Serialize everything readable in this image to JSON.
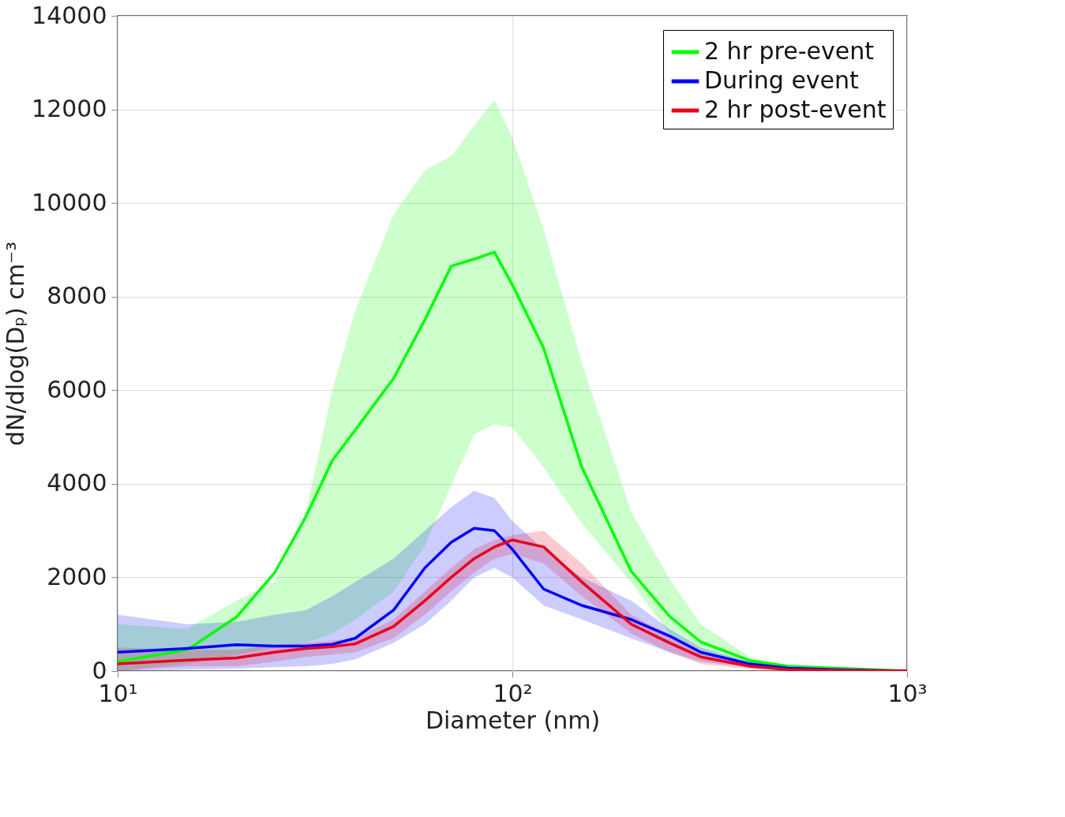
{
  "chart_data": {
    "type": "line",
    "xlabel": "Diameter (nm)",
    "ylabel": "dN/dlog(Dₚ) cm⁻³",
    "log": "x",
    "grid": true,
    "legend": "top right",
    "line_style": "solid",
    "marker": "none",
    "xlim": [
      10,
      1000
    ],
    "xticks": [
      {
        "value": 10,
        "label": "10¹"
      },
      {
        "value": 100,
        "label": "10²"
      },
      {
        "value": 1000,
        "label": "10³"
      }
    ],
    "ylim": [
      0,
      14000
    ],
    "yticks": [
      0,
      2000,
      4000,
      6000,
      8000,
      10000,
      12000,
      14000
    ],
    "x": [
      10,
      15,
      20,
      25,
      30,
      35,
      40,
      50,
      60,
      70,
      80,
      90,
      100,
      120,
      150,
      200,
      250,
      300,
      400,
      500,
      700,
      1000
    ],
    "series": [
      {
        "name": "2 hr pre-event",
        "color": "#00ff00",
        "values": [
          200,
          450,
          1150,
          2100,
          3300,
          4500,
          5150,
          6250,
          7500,
          8650,
          8800,
          8950,
          8250,
          6900,
          4350,
          2130,
          1170,
          620,
          220,
          100,
          50,
          0
        ],
        "lower": [
          0,
          150,
          350,
          500,
          600,
          800,
          1100,
          1700,
          2670,
          3970,
          5050,
          5270,
          5200,
          4350,
          3150,
          1890,
          800,
          350,
          150,
          50,
          20,
          0
        ],
        "upper": [
          1000,
          900,
          1500,
          1900,
          3400,
          6000,
          7700,
          9750,
          10700,
          11000,
          11650,
          12200,
          11400,
          9430,
          6570,
          3400,
          1970,
          1000,
          300,
          100,
          50,
          0
        ]
      },
      {
        "name": "During event",
        "color": "#0000ff",
        "values": [
          400,
          480,
          560,
          530,
          530,
          570,
          700,
          1300,
          2200,
          2750,
          3050,
          3000,
          2600,
          1750,
          1400,
          1100,
          750,
          400,
          150,
          60,
          20,
          0
        ],
        "lower": [
          0,
          30,
          50,
          80,
          100,
          150,
          250,
          600,
          1000,
          1500,
          2000,
          2200,
          2000,
          1400,
          1100,
          700,
          400,
          200,
          80,
          20,
          0,
          0
        ],
        "upper": [
          1200,
          1000,
          1050,
          1200,
          1300,
          1600,
          1900,
          2400,
          3000,
          3500,
          3850,
          3700,
          3200,
          2600,
          2000,
          1500,
          900,
          500,
          200,
          80,
          30,
          0
        ]
      },
      {
        "name": "2 hr post-event",
        "color": "#e8001c",
        "values": [
          150,
          230,
          280,
          400,
          480,
          520,
          580,
          950,
          1500,
          2000,
          2400,
          2650,
          2800,
          2650,
          1900,
          1000,
          600,
          300,
          100,
          30,
          10,
          0
        ],
        "lower": [
          0,
          100,
          100,
          200,
          300,
          350,
          400,
          700,
          1200,
          1700,
          2100,
          2400,
          2500,
          2300,
          1600,
          800,
          400,
          150,
          40,
          0,
          0,
          0
        ],
        "upper": [
          500,
          450,
          450,
          550,
          600,
          650,
          700,
          1100,
          1700,
          2200,
          2600,
          2800,
          2900,
          3000,
          2300,
          1200,
          750,
          400,
          150,
          50,
          20,
          0
        ]
      }
    ]
  }
}
